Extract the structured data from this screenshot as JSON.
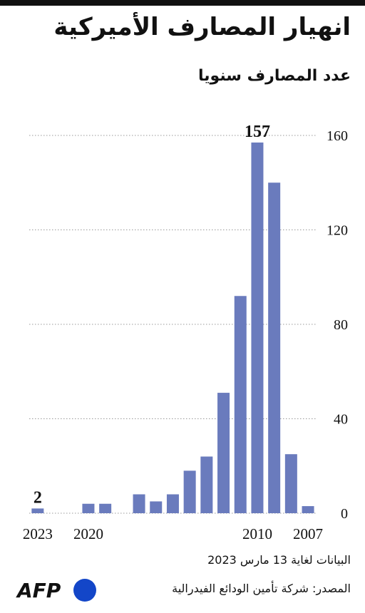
{
  "chart_data": {
    "type": "bar",
    "title": "انهيار المصارف الأميركية",
    "subtitle": "عدد المصارف سنويا",
    "categories": [
      "2023",
      null,
      null,
      "2020",
      null,
      null,
      null,
      null,
      null,
      null,
      null,
      null,
      null,
      "2010",
      null,
      null,
      "2007"
    ],
    "values": [
      2,
      0,
      0,
      4,
      4,
      0,
      8,
      5,
      8,
      18,
      24,
      51,
      92,
      157,
      140,
      25,
      3
    ],
    "color": "#6a7bbd",
    "ylim": [
      0,
      160
    ],
    "yticks": [
      0,
      40,
      80,
      120,
      160
    ],
    "grid": true,
    "note": "البيانات لغاية 13 مارس 2023",
    "source": "المصدر: شركة تأمين الودائع الفيدرالية"
  },
  "logo": "AFP"
}
